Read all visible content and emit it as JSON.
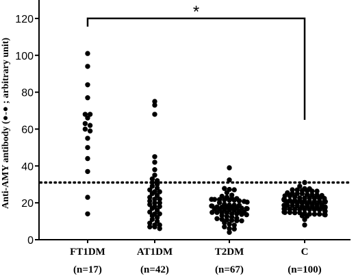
{
  "chart_data": {
    "type": "scatter",
    "title": "",
    "xlabel": "",
    "ylabel": "Anti-AMY antibody (●-● ;  arbitrary unit)",
    "ylim": [
      0,
      130
    ],
    "yticks": [
      0,
      20,
      40,
      60,
      80,
      100,
      120
    ],
    "categories": [
      {
        "name": "FT1DM",
        "n_label": "(n=17)"
      },
      {
        "name": "AT1DM",
        "n_label": "(n=42)"
      },
      {
        "name": "T2DM",
        "n_label": "(n=67)"
      },
      {
        "name": "C",
        "n_label": "(n=100)"
      }
    ],
    "series": [
      {
        "category": "FT1DM",
        "values": [
          101,
          94,
          84,
          77,
          68,
          68,
          66,
          63,
          62,
          60,
          59,
          55,
          50,
          44,
          37,
          23,
          14
        ]
      },
      {
        "category": "AT1DM",
        "values": [
          75,
          73,
          68,
          45,
          42,
          38,
          35,
          33,
          32,
          31,
          30,
          29,
          28,
          27,
          26,
          26,
          25,
          24,
          23,
          22,
          22,
          21,
          20,
          20,
          19,
          18,
          18,
          17,
          16,
          15,
          14,
          14,
          13,
          12,
          11,
          10,
          9,
          8,
          8,
          7,
          7,
          6
        ]
      },
      {
        "category": "T2DM",
        "mean": 17,
        "min": 4,
        "max": 39,
        "count": 67
      },
      {
        "category": "C",
        "mean": 20,
        "min": 8,
        "max": 31,
        "count": 100
      }
    ],
    "reference_line": {
      "value": 31,
      "style": "dotted"
    },
    "significance": {
      "from": "FT1DM",
      "to": "C",
      "symbol": "*",
      "bracket_top": 120,
      "right_drop_to": 65
    }
  }
}
